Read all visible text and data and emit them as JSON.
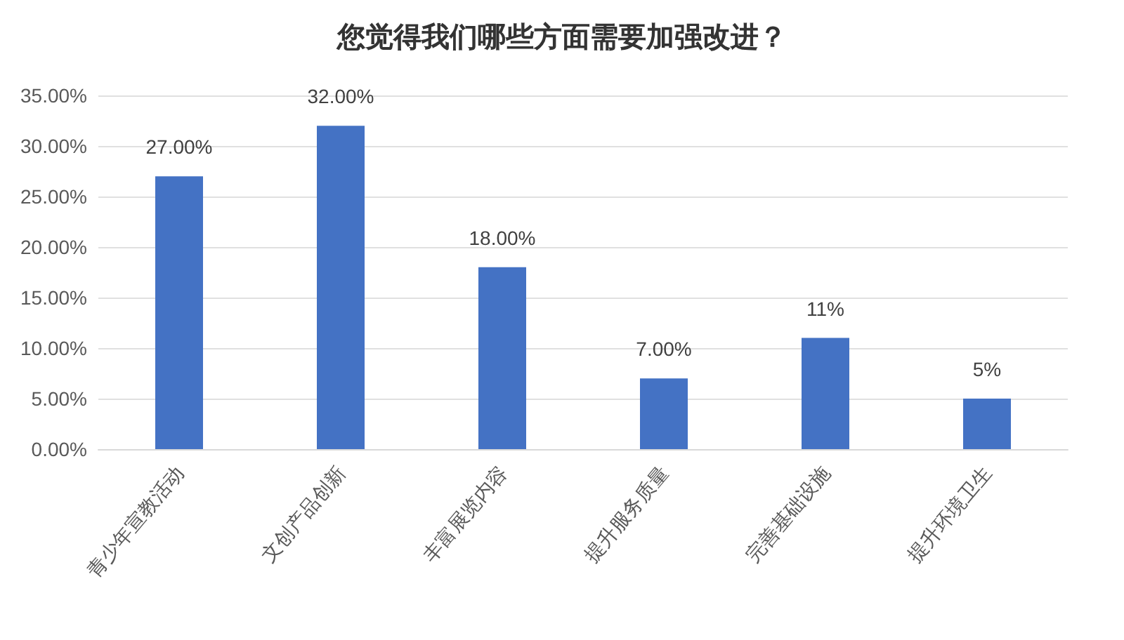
{
  "chart_data": {
    "type": "bar",
    "title": "您觉得我们哪些方面需要加强改进？",
    "categories": [
      "青少年宣教活动",
      "文创产品创新",
      "丰富展览内容",
      "提升服务质量",
      "完善基础设施",
      "提升环境卫生"
    ],
    "values": [
      27,
      32,
      18,
      7,
      11,
      5
    ],
    "value_labels": [
      "27.00%",
      "32.00%",
      "18.00%",
      "7.00%",
      "11%",
      "5%"
    ],
    "color": "#4472c4",
    "ylim": [
      0,
      35
    ],
    "yticks": [
      {
        "value": 0,
        "label": "0.00%"
      },
      {
        "value": 5,
        "label": "5.00%"
      },
      {
        "value": 10,
        "label": "10.00%"
      },
      {
        "value": 15,
        "label": "15.00%"
      },
      {
        "value": 20,
        "label": "20.00%"
      },
      {
        "value": 25,
        "label": "25.00%"
      },
      {
        "value": 30,
        "label": "30.00%"
      },
      {
        "value": 35,
        "label": "35.00%"
      }
    ],
    "grid": "y"
  }
}
